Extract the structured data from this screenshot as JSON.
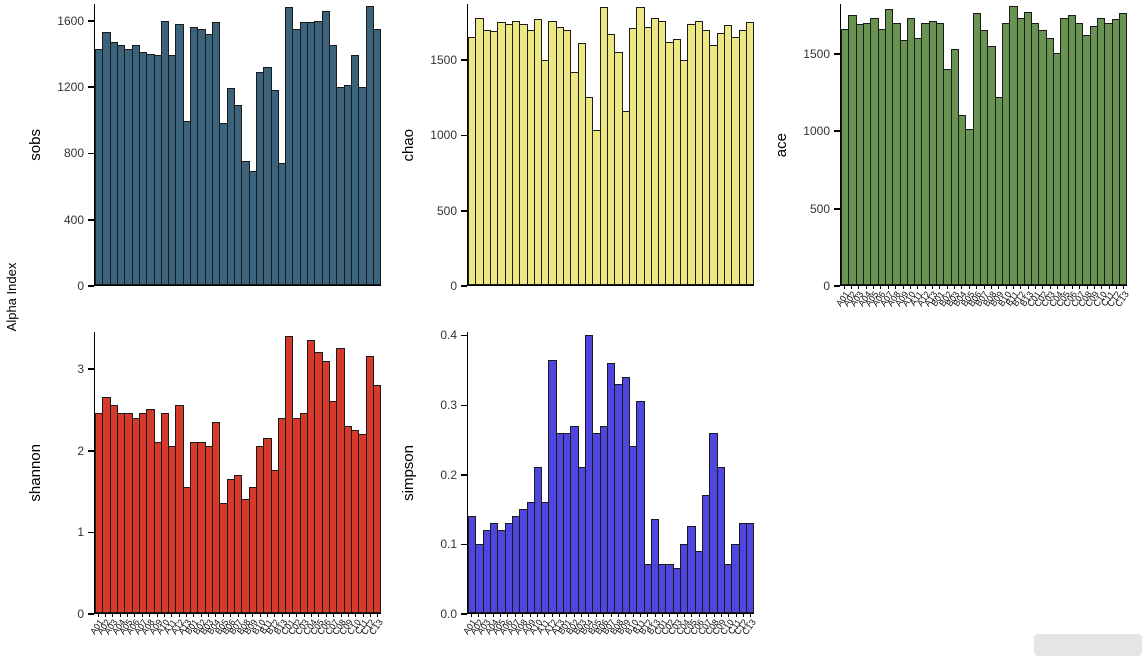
{
  "figure": {
    "ylabel": "Alpha Index",
    "background": "#ffffff"
  },
  "chart_data": [
    {
      "type": "bar",
      "title": "sobs",
      "color": "#3b637b",
      "border": "#1b1b1b",
      "ylim": [
        0,
        1700
      ],
      "yticks": [
        {
          "v": 0,
          "label": "0"
        },
        {
          "v": 400,
          "label": "400"
        },
        {
          "v": 800,
          "label": "800"
        },
        {
          "v": 1200,
          "label": "1200"
        },
        {
          "v": 1600,
          "label": "1600"
        }
      ],
      "show_x_labels": false,
      "categories": [
        "A01",
        "A02",
        "A03",
        "A04",
        "A05",
        "A06",
        "A07",
        "A08",
        "A09",
        "A10",
        "A11",
        "A12",
        "A13",
        "B01",
        "B02",
        "B03",
        "B04",
        "B05",
        "B06",
        "B07",
        "B08",
        "B09",
        "B10",
        "B11",
        "B12",
        "B13",
        "C01",
        "C02",
        "C03",
        "C04",
        "C05",
        "C06",
        "C07",
        "C08",
        "C09",
        "C10",
        "C11",
        "C12",
        "C13"
      ],
      "values": [
        1430,
        1530,
        1470,
        1450,
        1430,
        1450,
        1410,
        1400,
        1390,
        1600,
        1390,
        1580,
        990,
        1560,
        1550,
        1520,
        1590,
        980,
        1190,
        1090,
        750,
        690,
        1290,
        1320,
        1180,
        740,
        1680,
        1550,
        1590,
        1590,
        1600,
        1660,
        1450,
        1200,
        1210,
        1390,
        1200,
        1690,
        1550
      ]
    },
    {
      "type": "bar",
      "title": "chao",
      "color": "#ede881",
      "border": "#1b1b1b",
      "ylim": [
        0,
        1870
      ],
      "yticks": [
        {
          "v": 0,
          "label": "0"
        },
        {
          "v": 500,
          "label": "500"
        },
        {
          "v": 1000,
          "label": "1000"
        },
        {
          "v": 1500,
          "label": "1500"
        }
      ],
      "show_x_labels": false,
      "categories": [
        "A01",
        "A02",
        "A03",
        "A04",
        "A05",
        "A06",
        "A07",
        "A08",
        "A09",
        "A10",
        "A11",
        "A12",
        "A13",
        "B01",
        "B02",
        "B03",
        "B04",
        "B05",
        "B06",
        "B07",
        "B08",
        "B09",
        "B10",
        "B11",
        "B12",
        "B13",
        "C01",
        "C02",
        "C03",
        "C04",
        "C05",
        "C06",
        "C07",
        "C08",
        "C09",
        "C10",
        "C11",
        "C12",
        "C13"
      ],
      "values": [
        1650,
        1780,
        1700,
        1690,
        1750,
        1740,
        1760,
        1740,
        1700,
        1770,
        1500,
        1760,
        1720,
        1700,
        1420,
        1610,
        1250,
        1030,
        1850,
        1670,
        1550,
        1160,
        1710,
        1850,
        1720,
        1780,
        1760,
        1620,
        1640,
        1500,
        1740,
        1760,
        1700,
        1600,
        1680,
        1730,
        1650,
        1700,
        1750
      ]
    },
    {
      "type": "bar",
      "title": "ace",
      "color": "#699350",
      "border": "#1b1b1b",
      "ylim": [
        0,
        1820
      ],
      "yticks": [
        {
          "v": 0,
          "label": "0"
        },
        {
          "v": 500,
          "label": "500"
        },
        {
          "v": 1000,
          "label": "1000"
        },
        {
          "v": 1500,
          "label": "1500"
        }
      ],
      "show_x_labels": true,
      "categories": [
        "A01",
        "A02",
        "A03",
        "A04",
        "A05",
        "A06",
        "A07",
        "A08",
        "A09",
        "A10",
        "A11",
        "A12",
        "A13",
        "B01",
        "B02",
        "B03",
        "B04",
        "B05",
        "B06",
        "B07",
        "B08",
        "B09",
        "B10",
        "B11",
        "B12",
        "B13",
        "C01",
        "C02",
        "C03",
        "C04",
        "C05",
        "C06",
        "C07",
        "C08",
        "C09",
        "C10",
        "C11",
        "C12",
        "C13"
      ],
      "values": [
        1660,
        1750,
        1690,
        1700,
        1730,
        1660,
        1790,
        1700,
        1590,
        1730,
        1600,
        1700,
        1710,
        1700,
        1400,
        1530,
        1100,
        1010,
        1760,
        1650,
        1550,
        1220,
        1700,
        1810,
        1730,
        1770,
        1700,
        1650,
        1600,
        1500,
        1730,
        1750,
        1700,
        1620,
        1680,
        1730,
        1700,
        1720,
        1760
      ]
    },
    {
      "type": "bar",
      "title": "shannon",
      "color": "#d53a2b",
      "border": "#1b1b1b",
      "ylim": [
        0,
        3.45
      ],
      "yticks": [
        {
          "v": 0,
          "label": "0"
        },
        {
          "v": 1,
          "label": "1"
        },
        {
          "v": 2,
          "label": "2"
        },
        {
          "v": 3,
          "label": "3"
        }
      ],
      "show_x_labels": true,
      "categories": [
        "A01",
        "A02",
        "A03",
        "A04",
        "A05",
        "A06",
        "A07",
        "A08",
        "A09",
        "A10",
        "A11",
        "A12",
        "A13",
        "B01",
        "B02",
        "B03",
        "B04",
        "B05",
        "B06",
        "B07",
        "B08",
        "B09",
        "B10",
        "B11",
        "B12",
        "B13",
        "C01",
        "C02",
        "C03",
        "C04",
        "C05",
        "C06",
        "C07",
        "C08",
        "C09",
        "C10",
        "C11",
        "C12",
        "C13"
      ],
      "values": [
        2.45,
        2.65,
        2.55,
        2.45,
        2.45,
        2.4,
        2.45,
        2.5,
        2.1,
        2.45,
        2.05,
        2.55,
        1.55,
        2.1,
        2.1,
        2.05,
        2.35,
        1.35,
        1.65,
        1.7,
        1.4,
        1.55,
        2.05,
        2.15,
        1.75,
        2.4,
        3.4,
        2.4,
        2.45,
        3.35,
        3.2,
        3.1,
        2.6,
        3.25,
        2.3,
        2.25,
        2.2,
        3.15,
        2.8
      ]
    },
    {
      "type": "bar",
      "title": "simpson",
      "color": "#4f46e0",
      "border": "#1b1b1b",
      "ylim": [
        0,
        0.405
      ],
      "yticks": [
        {
          "v": 0,
          "label": "0.0"
        },
        {
          "v": 0.1,
          "label": "0.1"
        },
        {
          "v": 0.2,
          "label": "0.2"
        },
        {
          "v": 0.3,
          "label": "0.3"
        },
        {
          "v": 0.4,
          "label": "0.4"
        }
      ],
      "show_x_labels": true,
      "categories": [
        "A01",
        "A02",
        "A03",
        "A04",
        "A05",
        "A06",
        "A07",
        "A08",
        "A09",
        "A10",
        "A11",
        "A12",
        "A13",
        "B01",
        "B02",
        "B03",
        "B04",
        "B05",
        "B06",
        "B07",
        "B08",
        "B09",
        "B10",
        "B11",
        "B12",
        "B13",
        "C01",
        "C02",
        "C03",
        "C04",
        "C05",
        "C06",
        "C07",
        "C08",
        "C09",
        "C10",
        "C11",
        "C12",
        "C13"
      ],
      "values": [
        0.14,
        0.1,
        0.12,
        0.13,
        0.12,
        0.13,
        0.14,
        0.15,
        0.16,
        0.21,
        0.16,
        0.365,
        0.26,
        0.26,
        0.27,
        0.21,
        0.4,
        0.26,
        0.27,
        0.36,
        0.33,
        0.34,
        0.24,
        0.305,
        0.07,
        0.135,
        0.07,
        0.07,
        0.065,
        0.1,
        0.125,
        0.09,
        0.17,
        0.26,
        0.21,
        0.07,
        0.1,
        0.13,
        0.13
      ]
    }
  ]
}
